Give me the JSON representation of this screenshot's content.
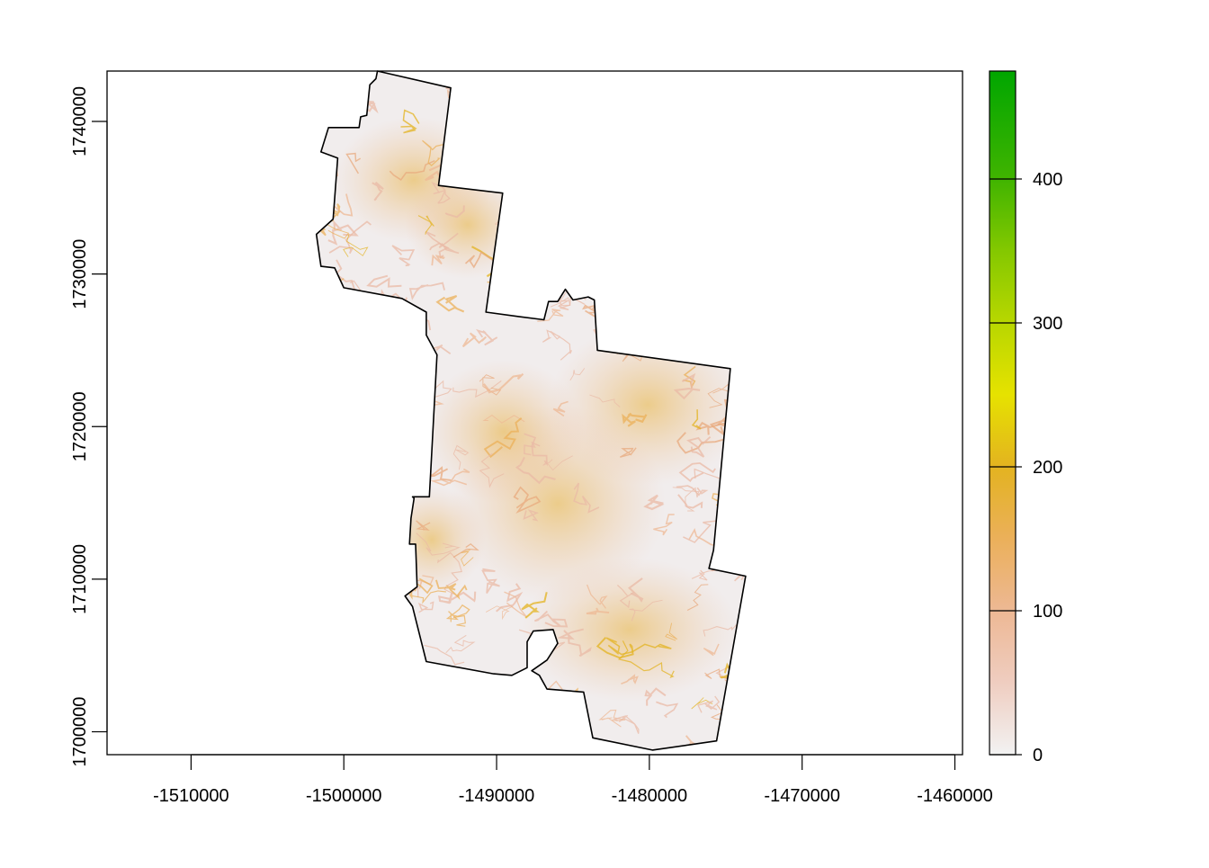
{
  "chart_data": {
    "type": "heatmap",
    "title": "",
    "xlabel": "",
    "ylabel": "",
    "xlim": [
      -1515500,
      -1459500
    ],
    "ylim": [
      1698500,
      1743300
    ],
    "x_ticks": [
      -1510000,
      -1500000,
      -1490000,
      -1480000,
      -1470000,
      -1460000
    ],
    "x_tick_labels": [
      "-1510000",
      "-1500000",
      "-1490000",
      "-1480000",
      "-1470000",
      "-1460000"
    ],
    "y_ticks": [
      1700000,
      1710000,
      1720000,
      1730000,
      1740000
    ],
    "y_tick_labels": [
      "1700000",
      "1710000",
      "1720000",
      "1730000",
      "1740000"
    ],
    "grid": false,
    "legend": {
      "type": "colorbar",
      "placement": "right",
      "range": [
        0,
        475
      ],
      "ticks": [
        0,
        100,
        200,
        300,
        400
      ],
      "tick_labels": [
        "0",
        "100",
        "200",
        "300",
        "400"
      ],
      "colors": [
        {
          "value": 0,
          "color": "#f2f2f2"
        },
        {
          "value": 50,
          "color": "#efcdc0"
        },
        {
          "value": 100,
          "color": "#edb894"
        },
        {
          "value": 150,
          "color": "#ebb05a"
        },
        {
          "value": 200,
          "color": "#e3b320"
        },
        {
          "value": 250,
          "color": "#e6e200"
        },
        {
          "value": 300,
          "color": "#b8d700"
        },
        {
          "value": 350,
          "color": "#84c800"
        },
        {
          "value": 400,
          "color": "#40b400"
        },
        {
          "value": 475,
          "color": "#00a600"
        }
      ]
    },
    "boundary": [
      [
        -1497800,
        1743300
      ],
      [
        -1493000,
        1742200
      ],
      [
        -1493800,
        1735800
      ],
      [
        -1489600,
        1735300
      ],
      [
        -1490700,
        1727500
      ],
      [
        -1488500,
        1727200
      ],
      [
        -1486900,
        1727000
      ],
      [
        -1486600,
        1728200
      ],
      [
        -1486000,
        1728200
      ],
      [
        -1485500,
        1729000
      ],
      [
        -1485000,
        1728300
      ],
      [
        -1484000,
        1728500
      ],
      [
        -1483600,
        1728300
      ],
      [
        -1483400,
        1725000
      ],
      [
        -1474700,
        1723800
      ],
      [
        -1475800,
        1711900
      ],
      [
        -1476100,
        1710700
      ],
      [
        -1473700,
        1710200
      ],
      [
        -1475600,
        1699400
      ],
      [
        -1479800,
        1698800
      ],
      [
        -1483700,
        1699600
      ],
      [
        -1484300,
        1702600
      ],
      [
        -1486700,
        1702800
      ],
      [
        -1487200,
        1703700
      ],
      [
        -1487700,
        1704000
      ],
      [
        -1486700,
        1704700
      ],
      [
        -1486000,
        1705800
      ],
      [
        -1486300,
        1706700
      ],
      [
        -1487600,
        1706600
      ],
      [
        -1488000,
        1705900
      ],
      [
        -1488000,
        1704200
      ],
      [
        -1489000,
        1703700
      ],
      [
        -1490200,
        1703800
      ],
      [
        -1494600,
        1704600
      ],
      [
        -1495500,
        1708200
      ],
      [
        -1496000,
        1708900
      ],
      [
        -1495200,
        1709500
      ],
      [
        -1495300,
        1712300
      ],
      [
        -1495700,
        1712300
      ],
      [
        -1495600,
        1714000
      ],
      [
        -1495400,
        1715300
      ],
      [
        -1495500,
        1715400
      ],
      [
        -1494400,
        1715400
      ],
      [
        -1493900,
        1724700
      ],
      [
        -1494600,
        1726000
      ],
      [
        -1494600,
        1727500
      ],
      [
        -1496200,
        1728400
      ],
      [
        -1500000,
        1729100
      ],
      [
        -1500600,
        1730400
      ],
      [
        -1501500,
        1730500
      ],
      [
        -1501800,
        1732600
      ],
      [
        -1500700,
        1733600
      ],
      [
        -1500400,
        1737600
      ],
      [
        -1501500,
        1738000
      ],
      [
        -1501000,
        1739600
      ],
      [
        -1499000,
        1739600
      ],
      [
        -1498900,
        1740300
      ],
      [
        -1498500,
        1740400
      ],
      [
        -1498300,
        1742400
      ],
      [
        -1497900,
        1742800
      ]
    ]
  }
}
